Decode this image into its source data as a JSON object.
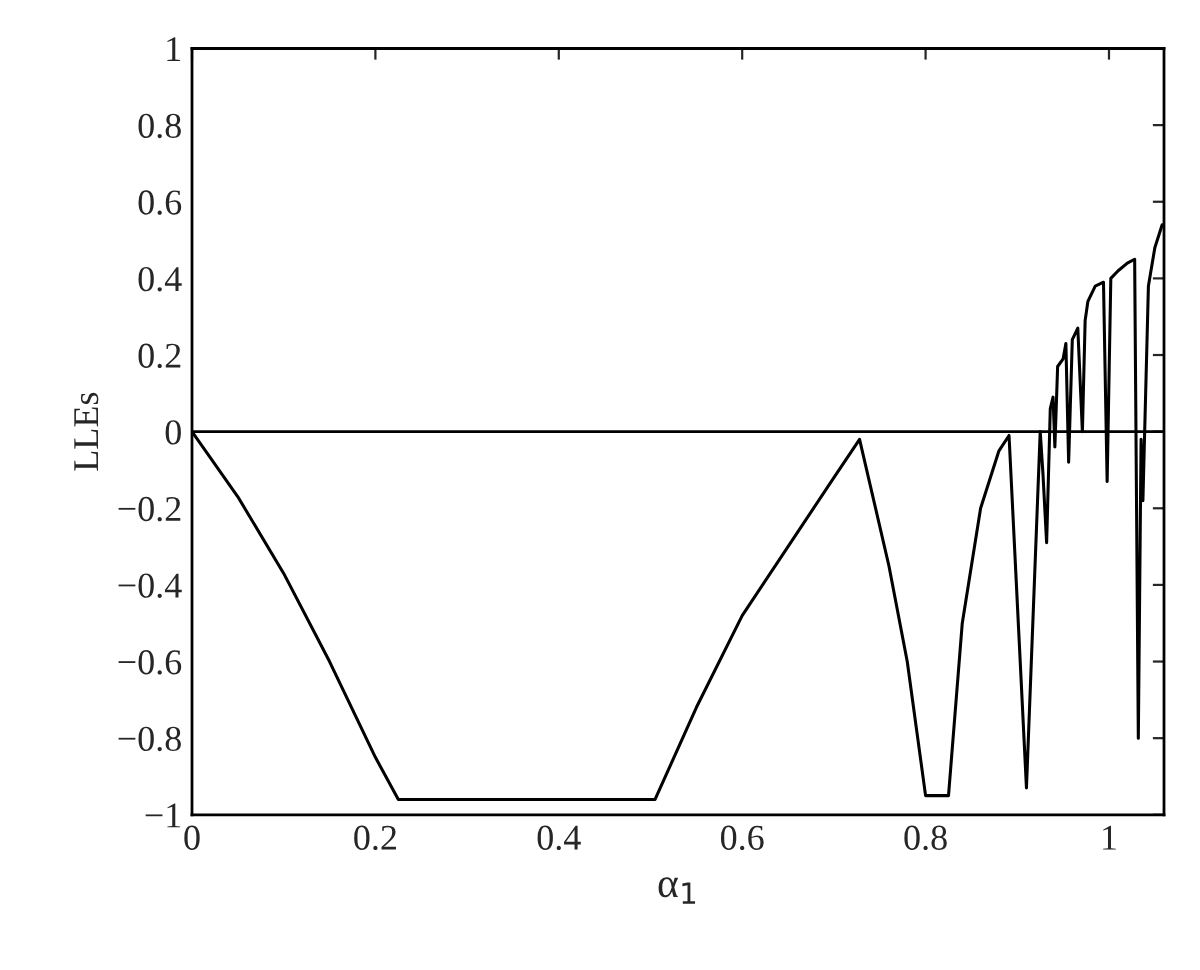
{
  "chart_data": {
    "type": "line",
    "xlabel": "α$_{1}$",
    "ylabel": "LLEs",
    "x": [
      0,
      0.05,
      0.1,
      0.15,
      0.2,
      0.225,
      0.505,
      0.55,
      0.6,
      0.65,
      0.7,
      0.728,
      0.76,
      0.78,
      0.8,
      0.825,
      0.84,
      0.86,
      0.88,
      0.891,
      0.91,
      0.925,
      0.928,
      0.932,
      0.936,
      0.939,
      0.941,
      0.944,
      0.95,
      0.953,
      0.956,
      0.96,
      0.966,
      0.971,
      0.974,
      0.977,
      0.985,
      0.994,
      0.998,
      1.002,
      1.01,
      1.02,
      1.028,
      1.032,
      1.035,
      1.037,
      1.043,
      1.05,
      1.058
    ],
    "series": [
      {
        "color": "#000000",
        "values": [
          0,
          -0.17,
          -0.37,
          -0.6,
          -0.85,
          -0.96,
          -0.96,
          -0.72,
          -0.48,
          -0.3,
          -0.12,
          -0.02,
          -0.35,
          -0.6,
          -0.95,
          -0.95,
          -0.5,
          -0.2,
          -0.05,
          -0.01,
          -0.93,
          0,
          -0.11,
          -0.29,
          0.06,
          0.09,
          -0.04,
          0.17,
          0.19,
          0.23,
          -0.08,
          0.24,
          0.27,
          0,
          0.29,
          0.34,
          0.38,
          0.39,
          -0.13,
          0.4,
          0.42,
          0.44,
          0.45,
          -0.8,
          -0.02,
          -0.18,
          0.38,
          0.48,
          0.54
        ]
      }
    ],
    "xlim": [
      0,
      1.06
    ],
    "ylim": [
      -1,
      1
    ],
    "xticks": [
      0,
      0.2,
      0.4,
      0.6,
      0.8,
      1
    ],
    "yticks": [
      {
        "value": -1,
        "label": "−1"
      },
      {
        "value": -0.8,
        "label": "−0.8"
      },
      {
        "value": -0.6,
        "label": "−0.6"
      },
      {
        "value": -0.4,
        "label": "−0.4"
      },
      {
        "value": -0.2,
        "label": "−0.2"
      },
      0,
      0.2,
      0.4,
      0.6,
      0.8,
      1
    ],
    "ref_lines": [
      {
        "axis": "y",
        "value": 0,
        "color": "#000000",
        "line_style": "solid"
      }
    ],
    "grid": false,
    "legend": false,
    "marker": "none",
    "line_style": "solid"
  }
}
